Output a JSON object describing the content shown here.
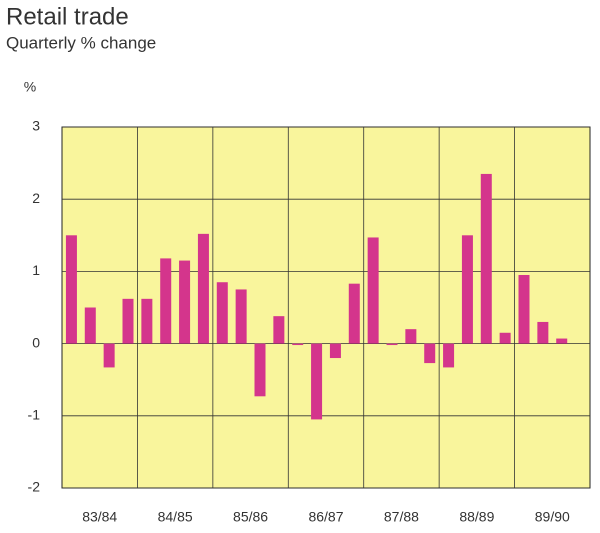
{
  "chart_data": {
    "type": "bar",
    "title": "Retail trade",
    "subtitle": "Quarterly % change",
    "y_label": "%",
    "categories": [
      null,
      "83/84",
      null,
      null,
      null,
      "84/85",
      null,
      null,
      null,
      "85/86",
      null,
      null,
      null,
      "86/87",
      null,
      null,
      null,
      "87/88",
      null,
      null,
      null,
      "88/89",
      null,
      null,
      null,
      "89/90",
      null
    ],
    "values": [
      1.5,
      0.5,
      -0.33,
      0.62,
      0.62,
      1.18,
      1.15,
      1.52,
      0.85,
      0.75,
      -0.73,
      0.38,
      -0.02,
      -1.05,
      -0.2,
      0.83,
      1.47,
      -0.02,
      0.2,
      -0.27,
      -0.33,
      1.5,
      2.35,
      0.15,
      0.95,
      0.3,
      0.07
    ],
    "color": "#d4358c",
    "ylim": [
      -2,
      3
    ],
    "yticks": [
      -2,
      -1,
      0,
      1,
      2,
      3
    ],
    "grid": true
  }
}
